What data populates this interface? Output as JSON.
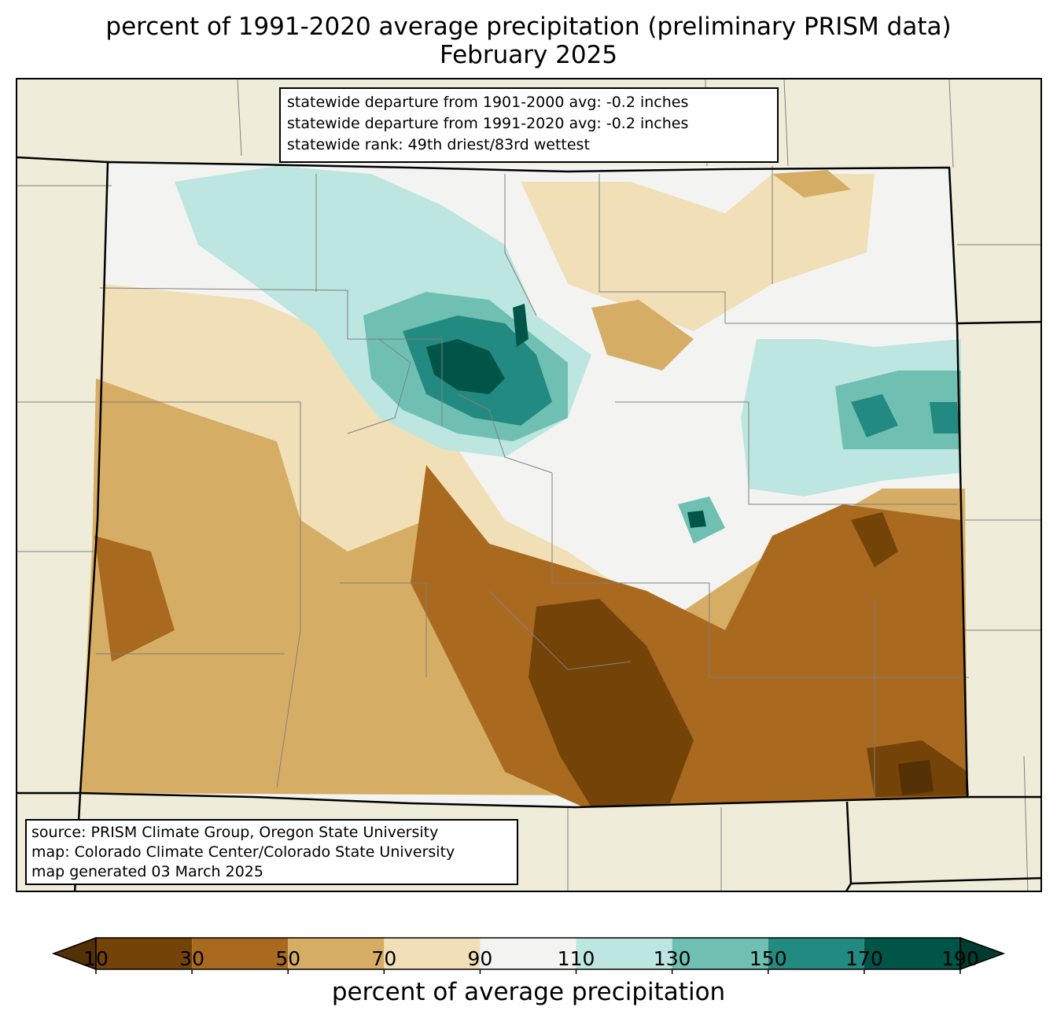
{
  "title": {
    "line1": "percent of 1991-2020 average precipitation (preliminary PRISM data)",
    "line2": "February 2025"
  },
  "stats": {
    "line1": "statewide departure from 1901-2000 avg: -0.2 inches",
    "line2": "statewide departure from 1991-2020 avg: -0.2 inches",
    "line3": "statewide rank: 49th driest/83rd wettest"
  },
  "credits": {
    "line1": "source: PRISM Climate Group, Oregon State University",
    "line2": "map: Colorado Climate Center/Colorado State University",
    "line3": "map generated 03 March 2025"
  },
  "colors": {
    "background_states": "#efedd9",
    "state_border": "#000000",
    "county_border": "#808080"
  },
  "legend": {
    "title": "percent of average precipitation",
    "tick_labels": [
      "10",
      "30",
      "50",
      "70",
      "90",
      "110",
      "130",
      "150",
      "170",
      "190"
    ],
    "bins": [
      {
        "range": "<10",
        "color": "#543005"
      },
      {
        "range": "10-30",
        "color": "#734308"
      },
      {
        "range": "30-50",
        "color": "#a9691f"
      },
      {
        "range": "50-70",
        "color": "#d6ad64"
      },
      {
        "range": "70-90",
        "color": "#f1e0b7"
      },
      {
        "range": "90-110",
        "color": "#f3f4f2"
      },
      {
        "range": "110-130",
        "color": "#bce6df"
      },
      {
        "range": "130-150",
        "color": "#6fc0b2"
      },
      {
        "range": "150-170",
        "color": "#228a80"
      },
      {
        "range": "170-190",
        "color": "#005448"
      },
      {
        "range": ">190",
        "color": "#003c30"
      }
    ]
  }
}
